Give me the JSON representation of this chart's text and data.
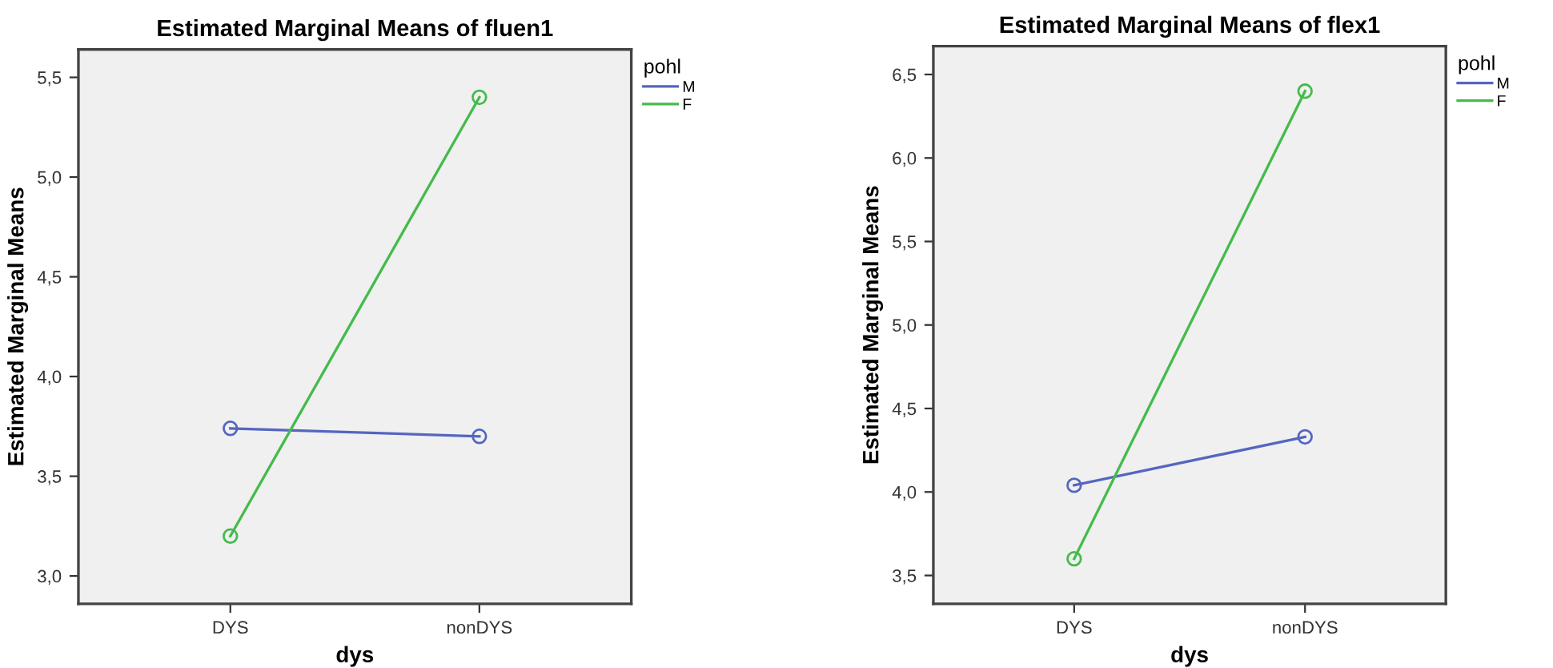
{
  "chart_data": [
    {
      "type": "line",
      "title": "Estimated Marginal Means of fluen1",
      "xlabel": "dys",
      "ylabel": "Estimated Marginal Means",
      "legend_title": "pohl",
      "legend": "top right",
      "marker": "circle",
      "line_style": "solid",
      "grid": false,
      "categories": [
        "DYS",
        "nonDYS"
      ],
      "ylim": [
        2.86,
        5.64
      ],
      "yticks": [
        {
          "value": 3.0,
          "label": "3,0"
        },
        {
          "value": 3.5,
          "label": "3,5"
        },
        {
          "value": 4.0,
          "label": "4,0"
        },
        {
          "value": 4.5,
          "label": "4,5"
        },
        {
          "value": 5.0,
          "label": "5,0"
        },
        {
          "value": 5.5,
          "label": "5,5"
        }
      ],
      "series": [
        {
          "name": "M",
          "color": "#5566c0",
          "values": [
            3.74,
            3.7
          ]
        },
        {
          "name": "F",
          "color": "#44bb4c",
          "values": [
            3.2,
            5.4
          ]
        }
      ]
    },
    {
      "type": "line",
      "title": "Estimated Marginal Means of flex1",
      "xlabel": "dys",
      "ylabel": "Estimated Marginal Means",
      "legend_title": "pohl",
      "legend": "top right",
      "marker": "circle",
      "line_style": "solid",
      "grid": false,
      "categories": [
        "DYS",
        "nonDYS"
      ],
      "ylim": [
        3.33,
        6.67
      ],
      "yticks": [
        {
          "value": 3.5,
          "label": "3,5"
        },
        {
          "value": 4.0,
          "label": "4,0"
        },
        {
          "value": 4.5,
          "label": "4,5"
        },
        {
          "value": 5.0,
          "label": "5,0"
        },
        {
          "value": 5.5,
          "label": "5,5"
        },
        {
          "value": 6.0,
          "label": "6,0"
        },
        {
          "value": 6.5,
          "label": "6,5"
        }
      ],
      "series": [
        {
          "name": "M",
          "color": "#5566c0",
          "values": [
            4.04,
            4.33
          ]
        },
        {
          "name": "F",
          "color": "#44bb4c",
          "values": [
            3.6,
            6.4
          ]
        }
      ]
    }
  ]
}
